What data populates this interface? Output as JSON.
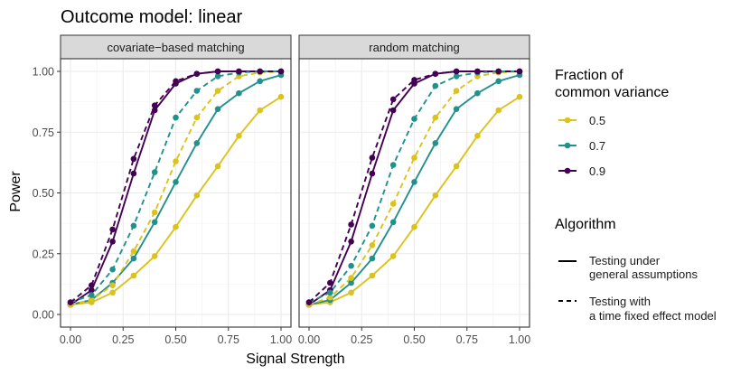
{
  "chart_data": {
    "type": "line",
    "title": "Outcome model: linear",
    "xlabel": "Signal Strength",
    "ylabel": "Power",
    "xlim": [
      0,
      1
    ],
    "ylim": [
      0,
      1
    ],
    "x_ticks": [
      0,
      0.25,
      0.5,
      0.75,
      1
    ],
    "x_tick_labels": [
      "0.00",
      "0.25",
      "0.50",
      "0.75",
      "1.00"
    ],
    "y_ticks": [
      0,
      0.25,
      0.5,
      0.75,
      1
    ],
    "y_tick_labels": [
      "0.00",
      "0.25",
      "0.50",
      "0.75",
      "1.00"
    ],
    "x": [
      0,
      0.1,
      0.2,
      0.3,
      0.4,
      0.5,
      0.6,
      0.7,
      0.8,
      0.9,
      1.0
    ],
    "colors": {
      "0.5": "#dcc21c",
      "0.7": "#21918c",
      "0.9": "#440154"
    },
    "legend_fraction": {
      "title_line1": "Fraction of",
      "title_line2": "common variance",
      "entries": [
        "0.5",
        "0.7",
        "0.9"
      ]
    },
    "legend_algorithm": {
      "title": "Algorithm",
      "entries": [
        {
          "line1": "Testing under",
          "line2": "general assumptions",
          "linetype": "solid"
        },
        {
          "line1": "Testing with",
          "line2": "a time fixed effect model",
          "linetype": "dashed"
        }
      ]
    },
    "panels": [
      {
        "strip": "covariate−based matching",
        "series": [
          {
            "fraction": "0.5",
            "algorithm": "general",
            "values": [
              0.04,
              0.05,
              0.09,
              0.16,
              0.24,
              0.36,
              0.49,
              0.61,
              0.735,
              0.84,
              0.895
            ]
          },
          {
            "fraction": "0.7",
            "algorithm": "general",
            "values": [
              0.04,
              0.06,
              0.13,
              0.23,
              0.38,
              0.545,
              0.705,
              0.845,
              0.91,
              0.96,
              0.985
            ]
          },
          {
            "fraction": "0.9",
            "algorithm": "general",
            "values": [
              0.04,
              0.1,
              0.3,
              0.58,
              0.84,
              0.95,
              0.99,
              1.0,
              1.0,
              1.0,
              1.0
            ]
          },
          {
            "fraction": "0.5",
            "algorithm": "fixed",
            "values": [
              0.04,
              0.06,
              0.12,
              0.26,
              0.42,
              0.63,
              0.81,
              0.92,
              0.98,
              0.995,
              1.0
            ]
          },
          {
            "fraction": "0.7",
            "algorithm": "fixed",
            "values": [
              0.05,
              0.08,
              0.185,
              0.365,
              0.585,
              0.81,
              0.92,
              0.98,
              0.995,
              1.0,
              1.0
            ]
          },
          {
            "fraction": "0.9",
            "algorithm": "fixed",
            "values": [
              0.05,
              0.12,
              0.35,
              0.64,
              0.86,
              0.96,
              0.99,
              1.0,
              1.0,
              1.0,
              1.0
            ]
          }
        ]
      },
      {
        "strip": "random matching",
        "series": [
          {
            "fraction": "0.5",
            "algorithm": "general",
            "values": [
              0.04,
              0.05,
              0.09,
              0.16,
              0.24,
              0.36,
              0.49,
              0.61,
              0.735,
              0.84,
              0.895
            ]
          },
          {
            "fraction": "0.7",
            "algorithm": "general",
            "values": [
              0.04,
              0.06,
              0.13,
              0.23,
              0.38,
              0.545,
              0.705,
              0.845,
              0.91,
              0.96,
              0.985
            ]
          },
          {
            "fraction": "0.9",
            "algorithm": "general",
            "values": [
              0.04,
              0.1,
              0.3,
              0.58,
              0.84,
              0.95,
              0.99,
              1.0,
              1.0,
              1.0,
              1.0
            ]
          },
          {
            "fraction": "0.5",
            "algorithm": "fixed",
            "values": [
              0.04,
              0.07,
              0.15,
              0.285,
              0.455,
              0.645,
              0.81,
              0.92,
              0.98,
              0.995,
              1.0
            ]
          },
          {
            "fraction": "0.7",
            "algorithm": "fixed",
            "values": [
              0.05,
              0.09,
              0.2,
              0.365,
              0.615,
              0.805,
              0.94,
              0.98,
              0.995,
              1.0,
              1.0
            ]
          },
          {
            "fraction": "0.9",
            "algorithm": "fixed",
            "values": [
              0.05,
              0.13,
              0.37,
              0.645,
              0.885,
              0.965,
              0.99,
              1.0,
              1.0,
              1.0,
              1.0
            ]
          }
        ]
      }
    ]
  }
}
